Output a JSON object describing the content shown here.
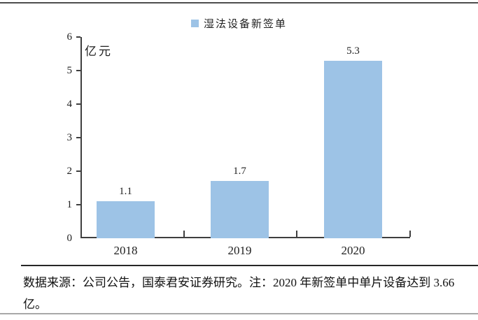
{
  "figure": {
    "unit_label": "亿元",
    "source_note_line1": "数据来源：公司公告，国泰君安证券研究。注：2020 年新签单中单片设备达到 3.66",
    "source_note_line2": "亿。"
  },
  "chart_data": {
    "type": "bar",
    "title": "",
    "legend": [
      "湿法设备新签单"
    ],
    "legend_position": "top-center",
    "categories": [
      "2018",
      "2019",
      "2020"
    ],
    "values": [
      1.1,
      1.7,
      5.3
    ],
    "value_labels": [
      "1.1",
      "1.7",
      "5.3"
    ],
    "xlabel": "",
    "ylabel": "亿元",
    "ylim": [
      0,
      6
    ],
    "ytick_step": 1,
    "yticks": [
      "0",
      "1",
      "2",
      "3",
      "4",
      "5",
      "6"
    ],
    "grid": false,
    "bar_color": "#9DC3E6",
    "axis_color": "#3f3f3f",
    "text_color": "#1f1f1f"
  }
}
